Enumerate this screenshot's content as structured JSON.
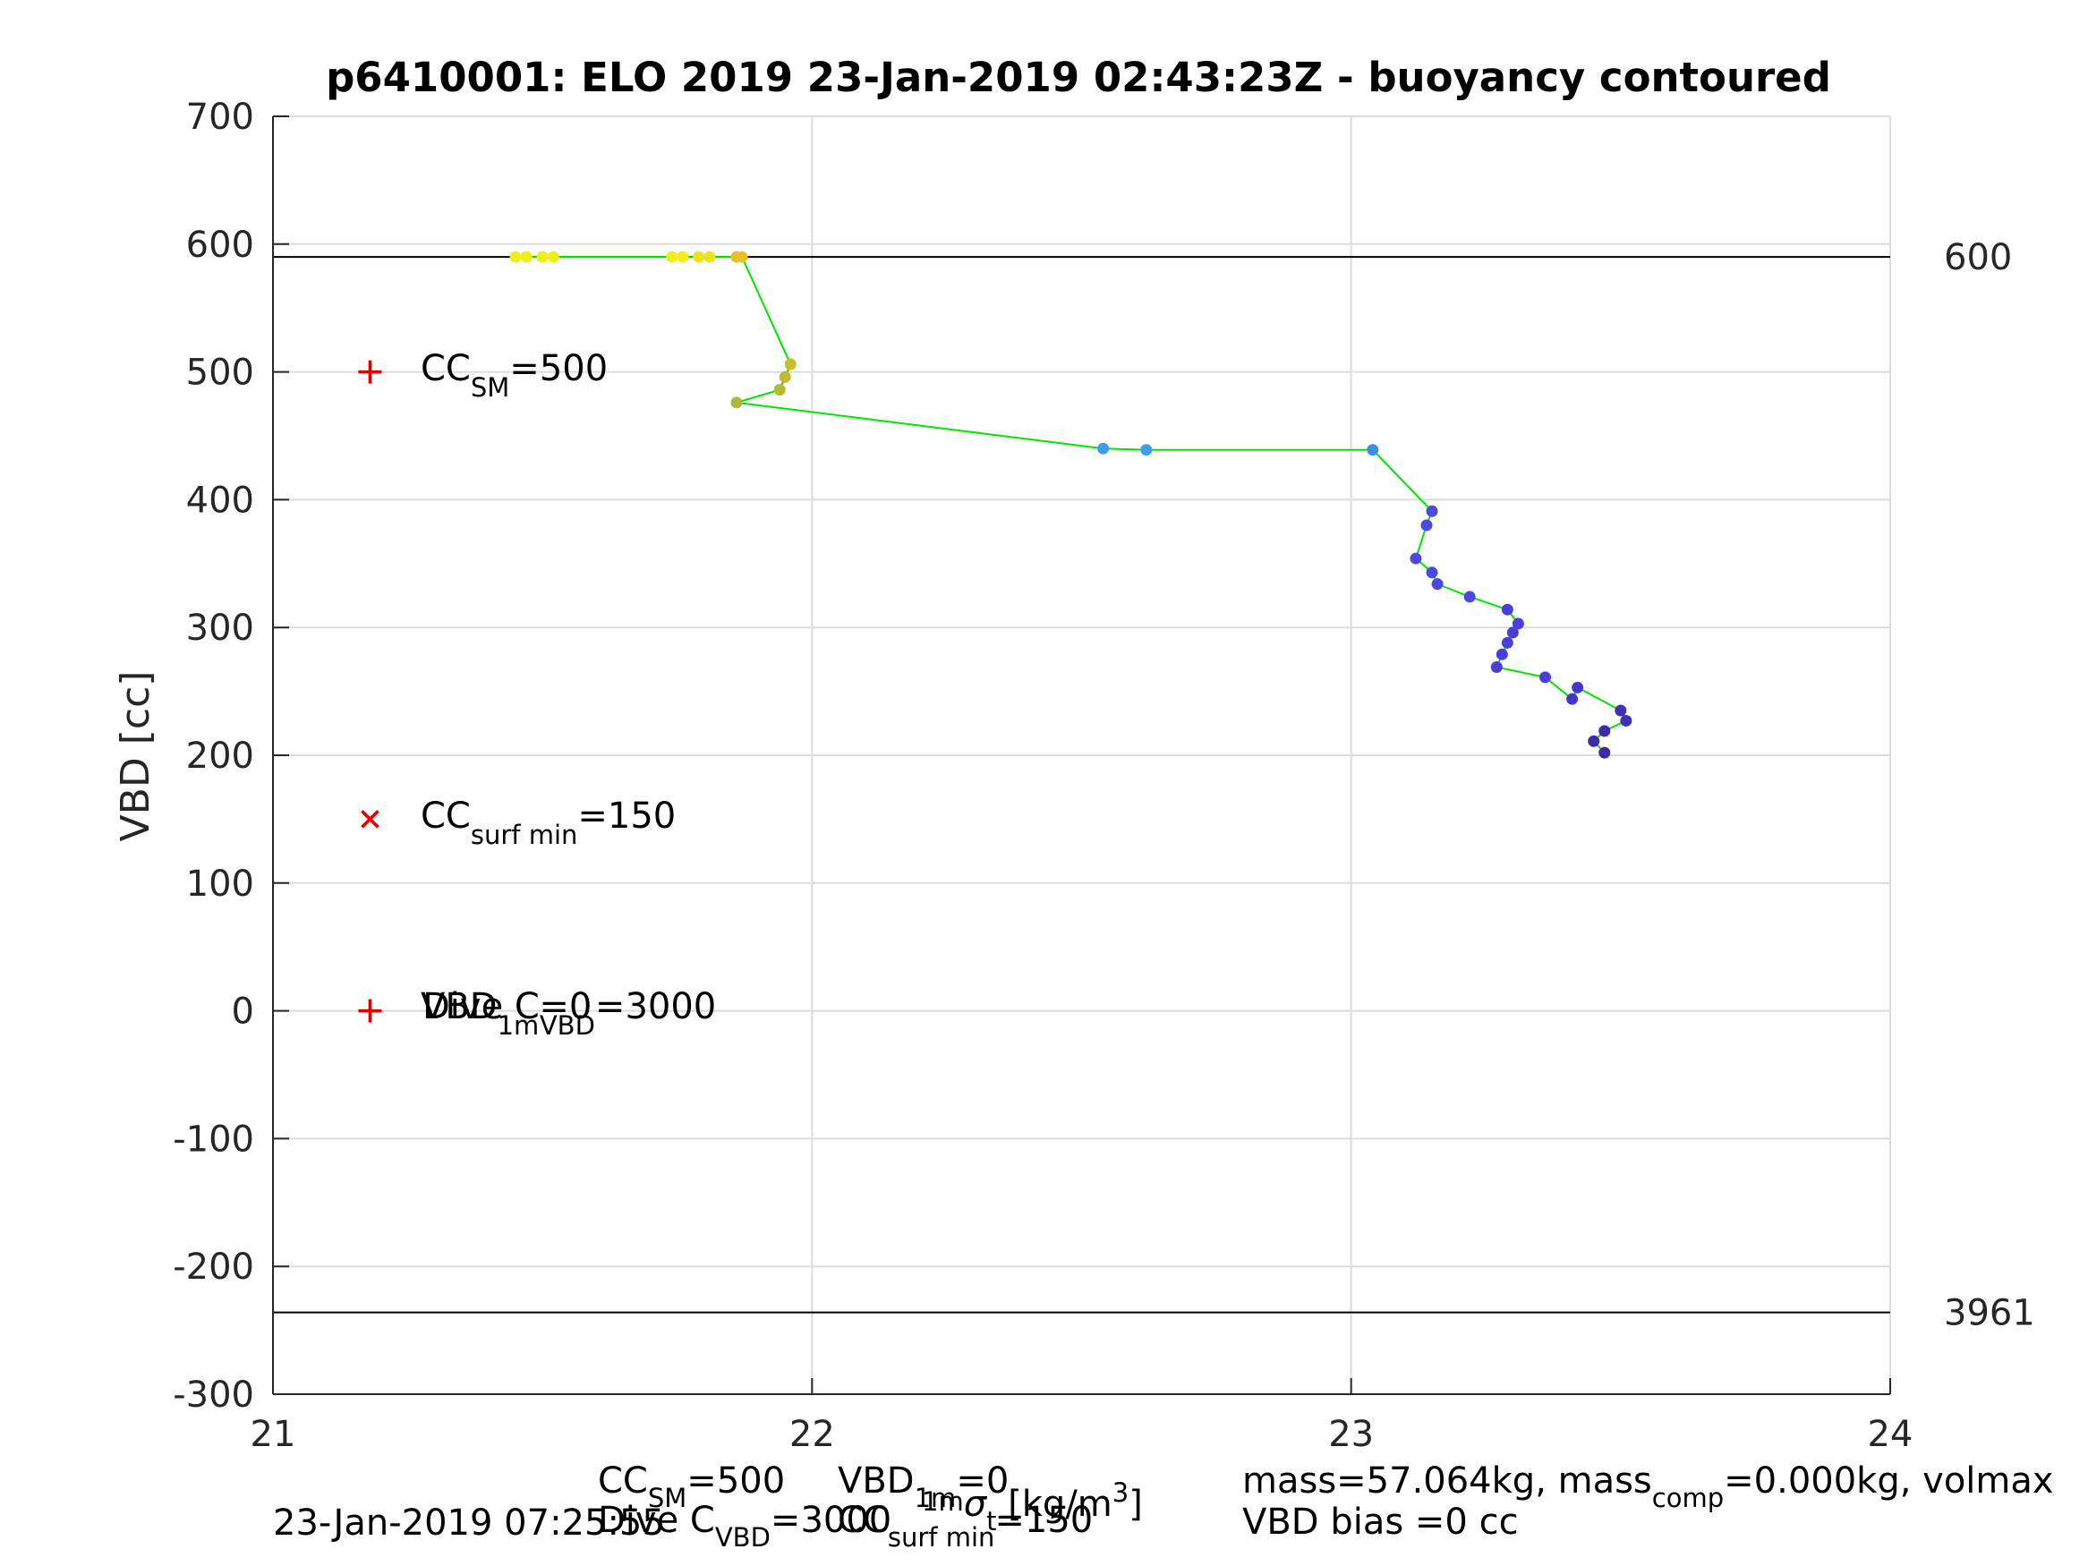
{
  "chart_data": {
    "type": "scatter",
    "title": "p6410001: ELO 2019 23-Jan-2019 02:43:23Z - buoyancy contoured",
    "ylabel": "VBD [cc]",
    "xlim": [
      21,
      24
    ],
    "ylim": [
      -300,
      700
    ],
    "xticks": [
      "21",
      "22",
      "23",
      "24"
    ],
    "yticks": [
      "-300",
      "-200",
      "-100",
      "0",
      "100",
      "200",
      "300",
      "400",
      "500",
      "600",
      "700"
    ],
    "grid": true,
    "hlines": [
      {
        "y": 590,
        "label": "600"
      },
      {
        "y": -236,
        "label": "3961"
      }
    ],
    "line_color": "#00e600",
    "series": [
      {
        "x": [
          21.45,
          21.47,
          21.5,
          21.52,
          21.74,
          21.76,
          21.79,
          21.81,
          21.86,
          21.87,
          21.96,
          21.95,
          21.94,
          21.86,
          22.54,
          22.62,
          23.04,
          23.15,
          23.14,
          23.12,
          23.15,
          23.16,
          23.22,
          23.29,
          23.31,
          23.3,
          23.29,
          23.28,
          23.27,
          23.36,
          23.41,
          23.42,
          23.5,
          23.51,
          23.47,
          23.45,
          23.47
        ],
        "y": [
          590,
          590,
          590,
          590,
          590,
          590,
          590,
          590,
          590,
          590,
          506,
          496,
          486,
          476,
          440,
          439,
          439,
          391,
          380,
          354,
          343,
          334,
          324,
          314,
          303,
          296,
          288,
          279,
          269,
          261,
          244,
          253,
          235,
          227,
          219,
          211,
          202
        ],
        "colors": [
          "#f0ee18",
          "#f0ee18",
          "#f0ee18",
          "#f0ee18",
          "#f0ee18",
          "#f0ee18",
          "#eee21d",
          "#eee21d",
          "#e8c02a",
          "#e8c02a",
          "#c5c02a",
          "#c0bb2e",
          "#b9b931",
          "#a8bb3a",
          "#3f9ee8",
          "#3f9ee8",
          "#3f8fe6",
          "#4a4ae0",
          "#4a4ae0",
          "#4a4ae0",
          "#4a4ae0",
          "#4a4ae0",
          "#4a4ae0",
          "#4a3fd8",
          "#4a3fd8",
          "#4a3fd8",
          "#4a3fd8",
          "#4a3fd8",
          "#4a3fd8",
          "#4a3fd8",
          "#4535c8",
          "#4535c8",
          "#4030b8",
          "#4030b8",
          "#3c2aa8",
          "#3c2aa8",
          "#3c2aa8"
        ]
      }
    ],
    "markers": [
      {
        "symbol": "+",
        "x": 21.18,
        "y": 500,
        "color": "#e00000"
      },
      {
        "symbol": "x",
        "x": 21.18,
        "y": 150,
        "color": "#e00000"
      },
      {
        "symbol": "+",
        "x": 21.18,
        "y": 0,
        "color": "#e00000"
      }
    ]
  },
  "annotations": {
    "cc_sm": {
      "base": "CC",
      "sub": "SM",
      "rest": "=500"
    },
    "cc_surf": {
      "base": "CC",
      "sub": "surf min",
      "rest": "=150"
    },
    "vbd_1m": {
      "base": "VBD",
      "sub": "1m",
      "rest": "=0"
    },
    "dive_c": {
      "base": "Dive C",
      "sub": "VBD",
      "rest": "=3000"
    }
  },
  "footer": {
    "timestamp": "23-Jan-2019 07:25:55",
    "cc_sm": {
      "base": "CC",
      "sub": "SM",
      "rest": "=500"
    },
    "dive_c": {
      "base": "Dive C",
      "sub": "VBD",
      "rest": "=3000"
    },
    "vbd_1m": {
      "base": "VBD",
      "sub": "1m",
      "rest": "=0"
    },
    "cc_surf": {
      "base": "CC",
      "sub": "surf min",
      "rest": "=150"
    },
    "xlabel": {
      "sigma": "σ",
      "sub": "t",
      "unit": " [kg/m",
      "sup": "3",
      "close": "]"
    },
    "mass": {
      "a": "mass=57.064kg, mass",
      "sub": "comp",
      "b": "=0.000kg, volmax"
    },
    "bias": "VBD bias =0 cc"
  }
}
